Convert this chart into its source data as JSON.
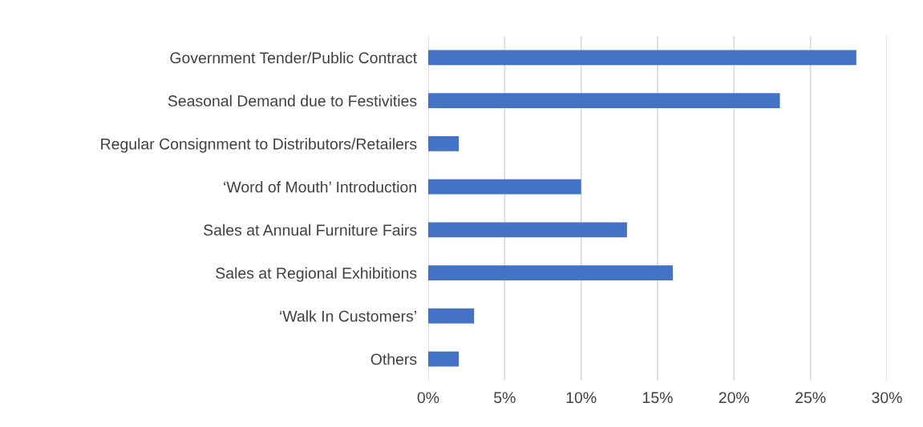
{
  "chart_data": {
    "type": "bar",
    "orientation": "horizontal",
    "categories": [
      "Government Tender/Public Contract",
      "Seasonal Demand due to Festivities",
      "Regular Consignment to Distributors/Retailers",
      "‘Word of Mouth’ Introduction",
      "Sales at Annual Furniture Fairs",
      "Sales at Regional Exhibitions",
      "‘Walk In Customers’",
      "Others"
    ],
    "values": [
      28,
      23,
      2,
      10,
      13,
      16,
      3,
      2
    ],
    "color": "#4472c4",
    "xlim": [
      0,
      30
    ],
    "xticks": [
      {
        "value": 0,
        "label": "0%"
      },
      {
        "value": 5,
        "label": "5%"
      },
      {
        "value": 10,
        "label": "10%"
      },
      {
        "value": 15,
        "label": "15%"
      },
      {
        "value": 20,
        "label": "20%"
      },
      {
        "value": 25,
        "label": "25%"
      },
      {
        "value": 30,
        "label": "30%"
      }
    ],
    "grid": "x"
  }
}
